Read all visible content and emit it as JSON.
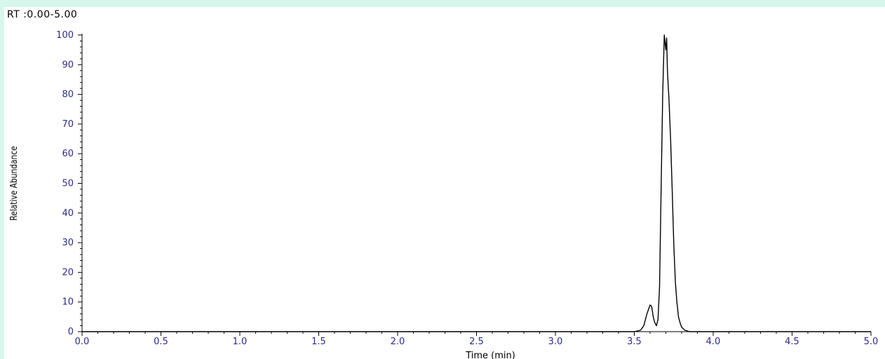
{
  "header": {
    "rt_range": "RT :0.00-5.00"
  },
  "chart_data": {
    "type": "line",
    "title": "",
    "xlabel": "Time (min)",
    "ylabel": "Relative Abundance",
    "xlim": [
      0.0,
      5.0
    ],
    "ylim": [
      0,
      100
    ],
    "x_ticks": [
      "0.0",
      "0.5",
      "1.0",
      "1.5",
      "2.0",
      "2.5",
      "3.0",
      "3.5",
      "4.0",
      "4.5",
      "5.0"
    ],
    "y_ticks": [
      "0",
      "10",
      "20",
      "30",
      "40",
      "50",
      "60",
      "70",
      "80",
      "90",
      "100"
    ],
    "grid": false,
    "colors": {
      "line": "#000000",
      "tick_labels": "#2b2b8a",
      "background": "#d8f7ec"
    },
    "series": [
      {
        "x": [
          0.0,
          3.5,
          3.54,
          3.56,
          3.58,
          3.6,
          3.61,
          3.62,
          3.63,
          3.64,
          3.65,
          3.66,
          3.67,
          3.68,
          3.69,
          3.7,
          3.705,
          3.71,
          3.72,
          3.73,
          3.74,
          3.75,
          3.76,
          3.77,
          3.78,
          3.79,
          3.8,
          3.82,
          3.85,
          3.9,
          5.0
        ],
        "y": [
          0,
          0,
          0.5,
          2,
          6,
          9,
          8.5,
          5,
          3,
          2,
          4,
          15,
          48,
          80,
          100,
          95,
          99,
          88,
          78,
          65,
          48,
          30,
          17,
          10,
          5,
          3,
          1.5,
          0.5,
          0,
          0,
          0
        ]
      }
    ]
  }
}
